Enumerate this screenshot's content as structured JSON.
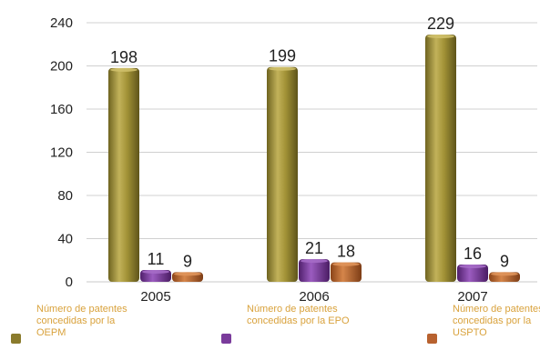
{
  "chart_data": {
    "type": "bar",
    "categories": [
      "2005",
      "2006",
      "2007"
    ],
    "series": [
      {
        "name": "Número de patentes concedidas por la OEPM",
        "values": [
          198,
          199,
          229
        ],
        "color": "#9a8a35"
      },
      {
        "name": "Número de patentes concedidas por la EPO",
        "values": [
          11,
          21,
          16
        ],
        "color": "#7a3b9b"
      },
      {
        "name": "Número de patentes concedidas por la USPTO",
        "values": [
          9,
          18,
          9
        ],
        "color": "#b8622f"
      }
    ],
    "yticks": [
      "0",
      "40",
      "80",
      "120",
      "160",
      "200",
      "240"
    ],
    "ylim": [
      0,
      240
    ],
    "grid": true
  }
}
